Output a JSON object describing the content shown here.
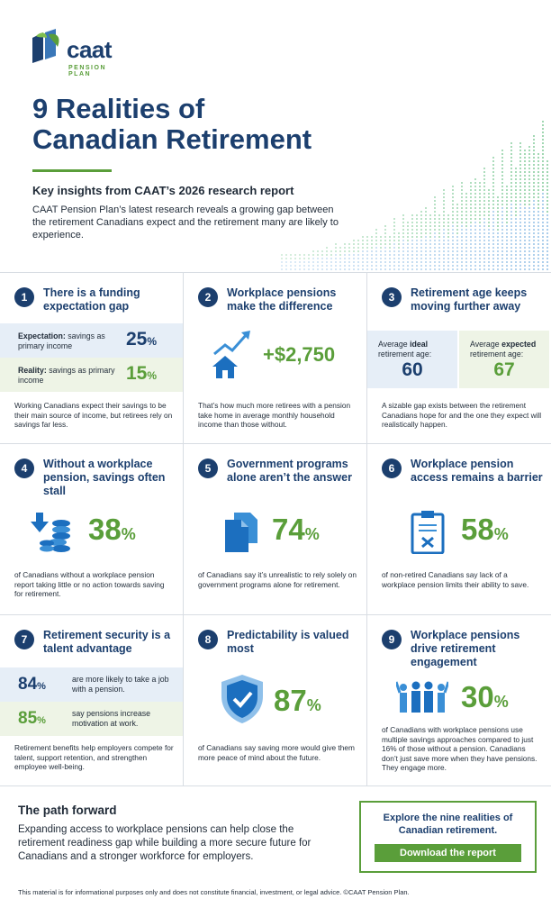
{
  "brand": {
    "name": "caat",
    "tagline": "PENSION PLAN",
    "navy": "#1c3f6e",
    "green": "#5a9e3a"
  },
  "header": {
    "title_line1": "9 Realities of",
    "title_line2": "Canadian Retirement",
    "subtitle": "Key insights from CAAT’s 2026 research report",
    "intro": "CAAT Pension Plan’s latest research reveals a growing gap between the retirement Canadians expect and the retirement many are likely to experience."
  },
  "cards": {
    "c1": {
      "num": "1",
      "heading": "There is a funding expectation gap",
      "exp_bold": "Expectation:",
      "exp_text": " savings as primary income",
      "exp_val": "25",
      "real_bold": "Reality:",
      "real_text": " savings as primary income",
      "real_val": "15",
      "pct": "%",
      "desc": "Working Canadians expect their savings to be their main source of income, but retirees rely on savings far less."
    },
    "c2": {
      "num": "2",
      "heading": "Workplace pensions make the difference",
      "value": "+$2,750",
      "icon": "house-rising-arrow-icon",
      "desc": "That’s how much more retirees with a pension take home in average monthly household income than those without."
    },
    "c3": {
      "num": "3",
      "heading": "Retirement age keeps moving further away",
      "ideal_pre": "Average ",
      "ideal_bold": "ideal",
      "ideal_post": " retirement age:",
      "ideal_val": "60",
      "exp_pre": "Average ",
      "exp_bold": "expected",
      "exp_post": " retirement age:",
      "exp_val": "67",
      "desc": "A sizable gap exists between the retirement Canadians hope for and the one they expect will realistically happen."
    },
    "c4": {
      "num": "4",
      "heading": "Without a workplace pension, savings often stall",
      "value": "38",
      "pct": "%",
      "icon": "coins-down-arrow-icon",
      "desc": "of Canadians without a workplace pension report taking little or no action towards saving for retirement."
    },
    "c5": {
      "num": "5",
      "heading": "Government programs alone aren’t the answer",
      "value": "74",
      "pct": "%",
      "icon": "documents-icon",
      "desc": "of Canadians say it’s unrealistic to rely solely on government programs alone for retirement."
    },
    "c6": {
      "num": "6",
      "heading": "Workplace pension access remains a barrier",
      "value": "58",
      "pct": "%",
      "icon": "clipboard-x-icon",
      "desc": "of non-retired Canadians say lack of a workplace pension limits their ability to save."
    },
    "c7": {
      "num": "7",
      "heading": "Retirement security is a talent advantage",
      "r1_val": "84",
      "r1_text": "are more likely to take a job with a pension.",
      "r2_val": "85",
      "r2_text": "say pensions increase motivation at work.",
      "pct": "%",
      "desc": "Retirement benefits help employers compete for talent, support retention, and strengthen employee well-being."
    },
    "c8": {
      "num": "8",
      "heading": "Predictability is valued most",
      "value": "87",
      "pct": "%",
      "icon": "shield-check-icon",
      "desc": "of Canadians say saving more would give them more peace of mind about the future."
    },
    "c9": {
      "num": "9",
      "heading": "Workplace pensions drive retirement engagement",
      "value": "30",
      "pct": "%",
      "icon": "people-group-icon",
      "desc": "of Canadians with workplace pensions use multiple savings approaches compared to just 16% of those without a pension. Canadians don’t just save more when they have pensions. They engage more."
    }
  },
  "path": {
    "title": "The path forward",
    "body": "Expanding access to workplace pensions can help close the retirement readiness gap while building a more secure future for Canadians and a stronger workforce for employers."
  },
  "cta": {
    "text": "Explore the nine realities of Canadian retirement.",
    "button": "Download the report"
  },
  "footer": "This material is for informational purposes only and does not constitute financial, investment, or legal advice. ©CAAT Pension Plan."
}
